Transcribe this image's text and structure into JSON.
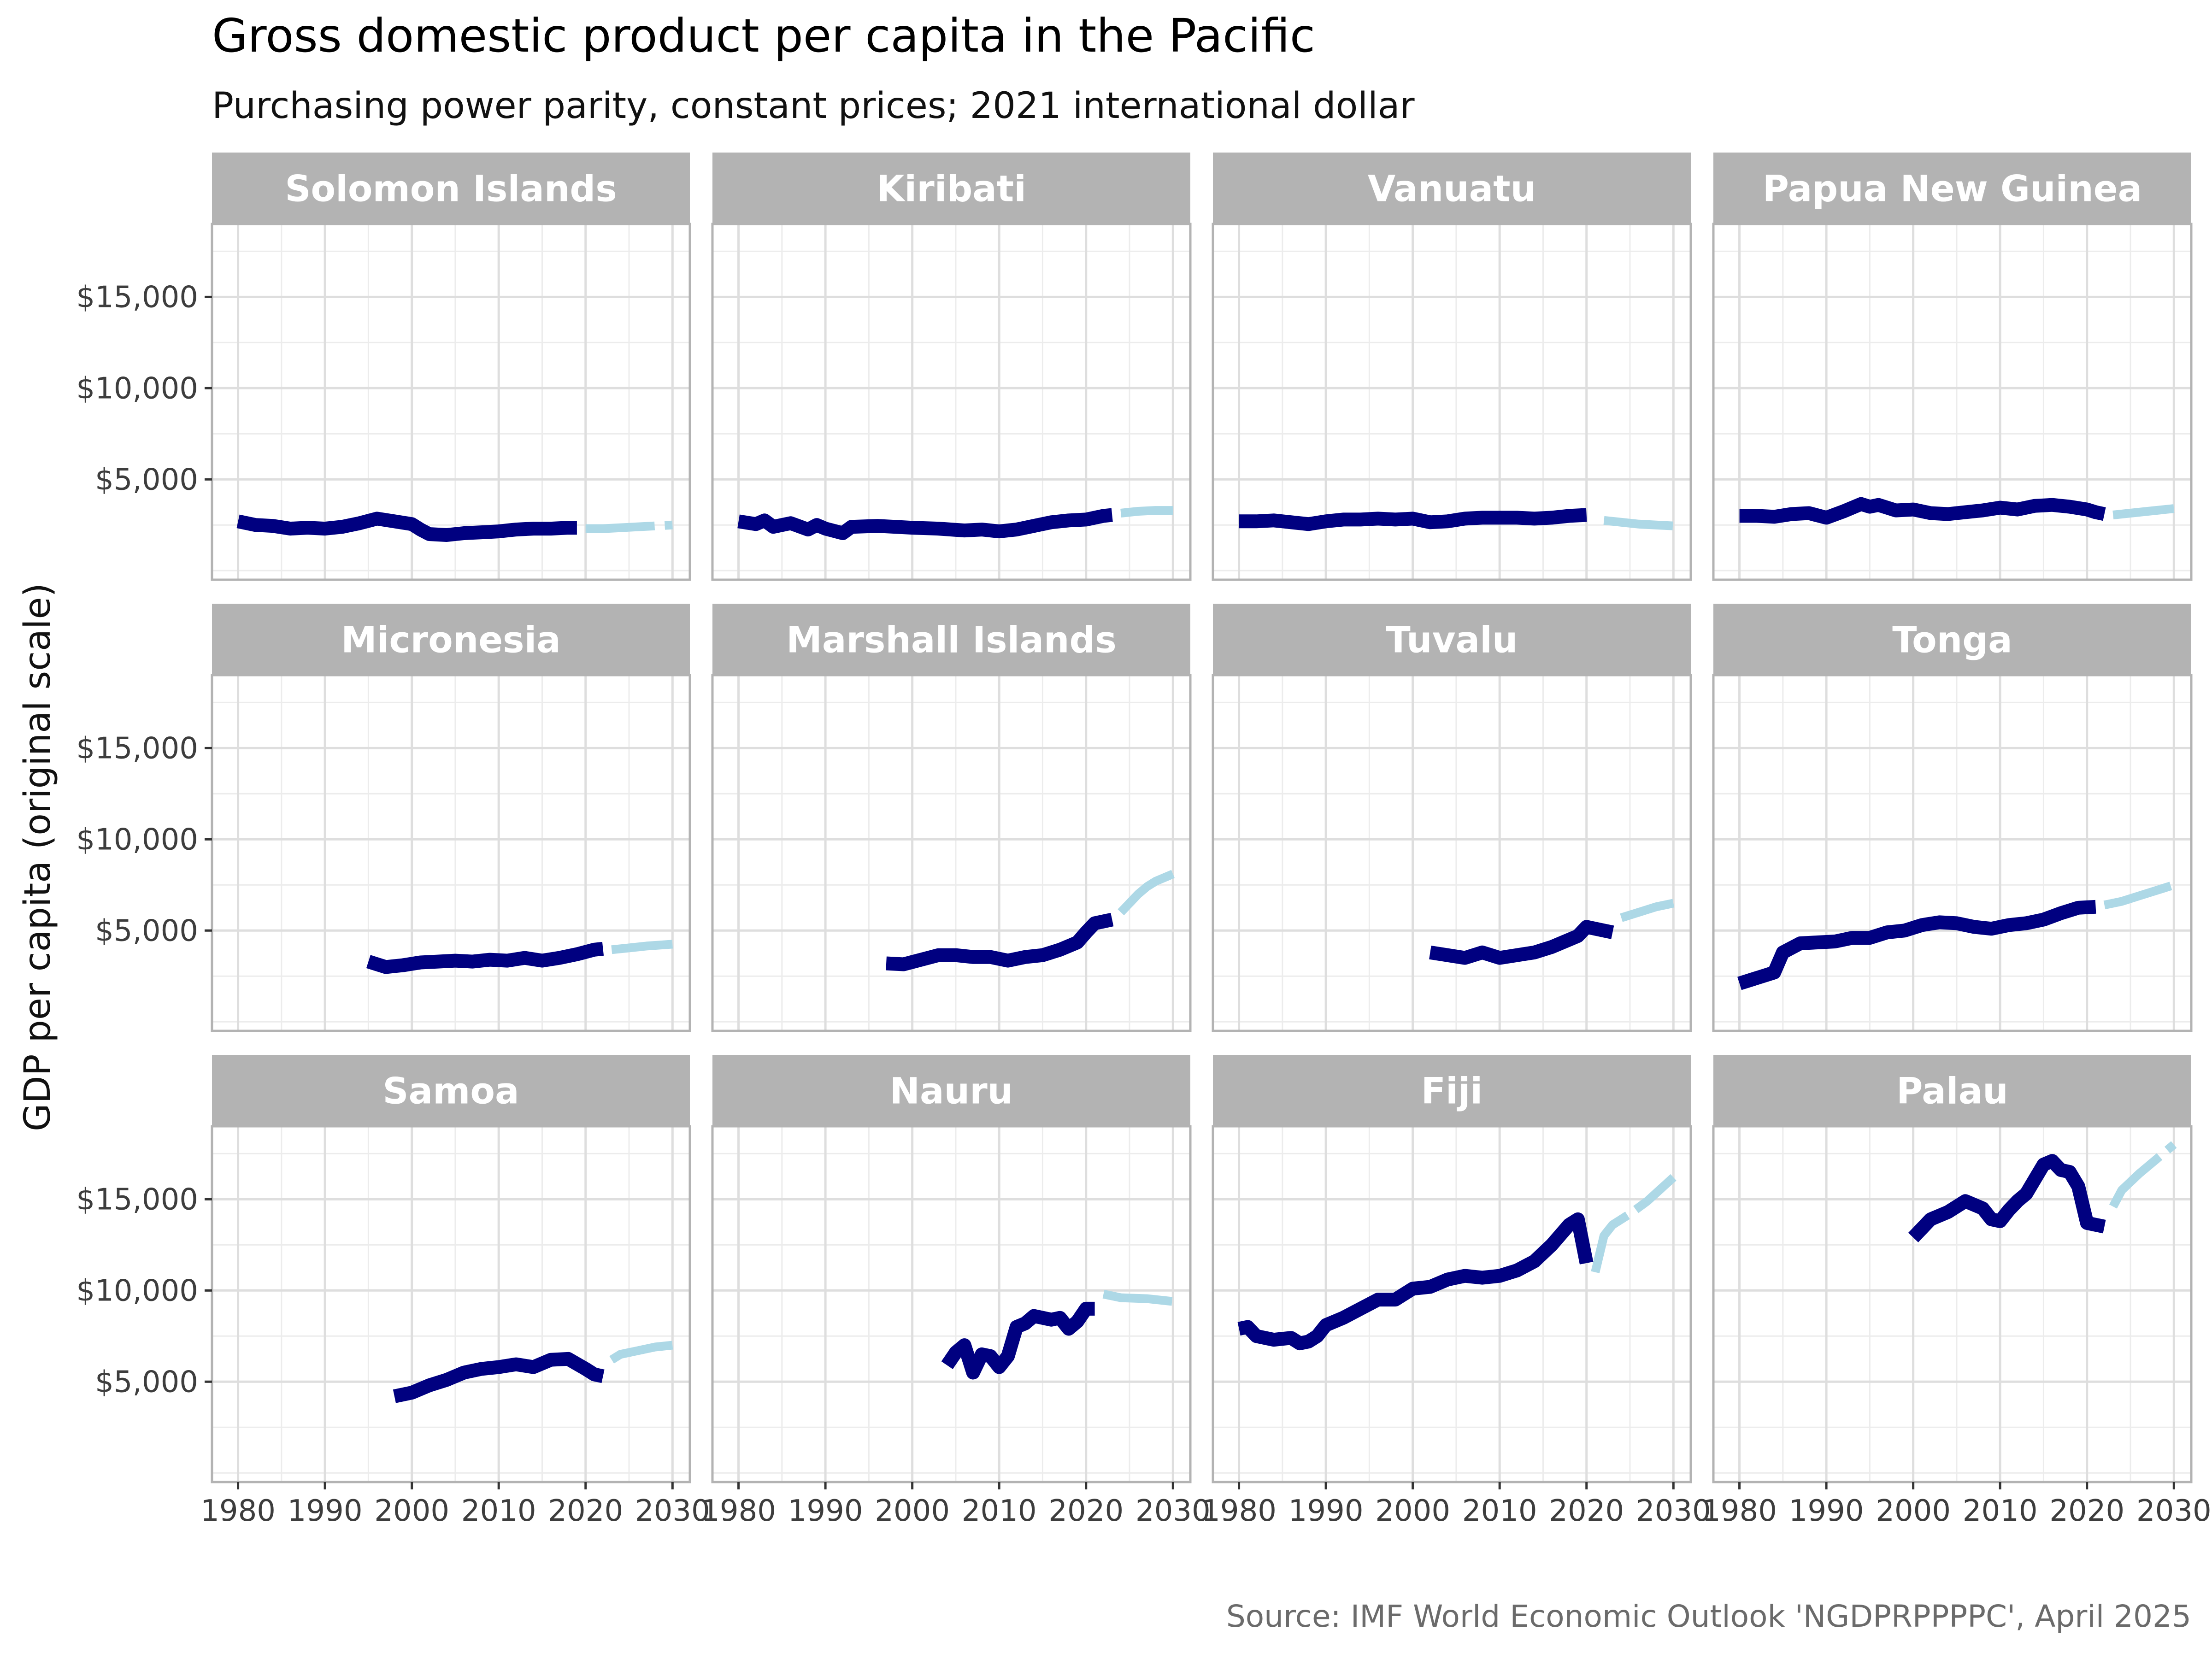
{
  "chart_data": {
    "type": "line",
    "title": "Gross domestic product per capita in the Pacific",
    "subtitle": "Purchasing power parity, constant prices; 2021 international dollar",
    "ylabel": "GDP per capita (original scale)",
    "xlabel": "",
    "caption": "Source: IMF World Economic Outlook 'NGDPRPPPPC', April 2025",
    "xlim": [
      1977,
      2032
    ],
    "ylim": [
      -500,
      19000
    ],
    "x_ticks": [
      1980,
      1990,
      2000,
      2010,
      2020,
      2030
    ],
    "x_tick_labels": [
      "1980",
      "1990",
      "2000",
      "2010",
      "2020",
      "2030"
    ],
    "y_ticks": [
      5000,
      10000,
      15000
    ],
    "y_tick_labels": [
      "$5,000",
      "$10,000",
      "$15,000"
    ],
    "grid": true,
    "colors": {
      "historical": "#000080",
      "forecast": "#add8e6",
      "strip": "#b3b3b3",
      "panel_border": "#b3b3b3",
      "grid_major": "#dedede",
      "grid_minor": "#ececec"
    },
    "panels": [
      {
        "name": "Solomon Islands",
        "historical": [
          [
            1980,
            2700
          ],
          [
            1982,
            2500
          ],
          [
            1984,
            2450
          ],
          [
            1986,
            2300
          ],
          [
            1988,
            2350
          ],
          [
            1990,
            2300
          ],
          [
            1992,
            2400
          ],
          [
            1994,
            2600
          ],
          [
            1996,
            2850
          ],
          [
            1998,
            2700
          ],
          [
            2000,
            2550
          ],
          [
            2001,
            2250
          ],
          [
            2002,
            2000
          ],
          [
            2004,
            1950
          ],
          [
            2006,
            2050
          ],
          [
            2008,
            2100
          ],
          [
            2010,
            2150
          ],
          [
            2012,
            2250
          ],
          [
            2014,
            2300
          ],
          [
            2016,
            2300
          ],
          [
            2018,
            2350
          ],
          [
            2019,
            2350
          ]
        ],
        "forecast": [
          [
            2020,
            2300
          ],
          [
            2022,
            2300
          ],
          [
            2024,
            2350
          ],
          [
            2026,
            2400
          ],
          [
            2028,
            2450
          ],
          [
            2030,
            2500
          ]
        ]
      },
      {
        "name": "Kiribati",
        "historical": [
          [
            1980,
            2700
          ],
          [
            1982,
            2550
          ],
          [
            1983,
            2750
          ],
          [
            1984,
            2400
          ],
          [
            1986,
            2600
          ],
          [
            1988,
            2250
          ],
          [
            1989,
            2500
          ],
          [
            1990,
            2300
          ],
          [
            1992,
            2050
          ],
          [
            1993,
            2400
          ],
          [
            1996,
            2450
          ],
          [
            1998,
            2400
          ],
          [
            2000,
            2350
          ],
          [
            2003,
            2300
          ],
          [
            2006,
            2200
          ],
          [
            2008,
            2250
          ],
          [
            2010,
            2150
          ],
          [
            2012,
            2250
          ],
          [
            2014,
            2450
          ],
          [
            2016,
            2650
          ],
          [
            2018,
            2750
          ],
          [
            2020,
            2800
          ],
          [
            2022,
            3000
          ],
          [
            2023,
            3050
          ]
        ],
        "forecast": [
          [
            2024,
            3150
          ],
          [
            2026,
            3250
          ],
          [
            2028,
            3300
          ],
          [
            2030,
            3300
          ]
        ]
      },
      {
        "name": "Vanuatu",
        "historical": [
          [
            1980,
            2700
          ],
          [
            1982,
            2700
          ],
          [
            1984,
            2750
          ],
          [
            1986,
            2650
          ],
          [
            1988,
            2550
          ],
          [
            1990,
            2700
          ],
          [
            1992,
            2800
          ],
          [
            1994,
            2800
          ],
          [
            1996,
            2850
          ],
          [
            1998,
            2800
          ],
          [
            2000,
            2850
          ],
          [
            2002,
            2650
          ],
          [
            2004,
            2700
          ],
          [
            2006,
            2850
          ],
          [
            2008,
            2900
          ],
          [
            2010,
            2900
          ],
          [
            2012,
            2900
          ],
          [
            2014,
            2850
          ],
          [
            2016,
            2900
          ],
          [
            2018,
            3000
          ],
          [
            2020,
            3050
          ]
        ],
        "forecast": [
          [
            2022,
            2750
          ],
          [
            2024,
            2650
          ],
          [
            2026,
            2550
          ],
          [
            2028,
            2500
          ],
          [
            2030,
            2450
          ]
        ]
      },
      {
        "name": "Papua New Guinea",
        "historical": [
          [
            1980,
            3000
          ],
          [
            1982,
            3000
          ],
          [
            1984,
            2950
          ],
          [
            1986,
            3100
          ],
          [
            1988,
            3150
          ],
          [
            1990,
            2900
          ],
          [
            1992,
            3250
          ],
          [
            1994,
            3650
          ],
          [
            1995,
            3500
          ],
          [
            1996,
            3600
          ],
          [
            1998,
            3300
          ],
          [
            2000,
            3350
          ],
          [
            2002,
            3150
          ],
          [
            2004,
            3100
          ],
          [
            2006,
            3200
          ],
          [
            2008,
            3300
          ],
          [
            2010,
            3450
          ],
          [
            2012,
            3350
          ],
          [
            2014,
            3550
          ],
          [
            2016,
            3600
          ],
          [
            2018,
            3500
          ],
          [
            2020,
            3350
          ],
          [
            2021,
            3200
          ],
          [
            2022,
            3100
          ]
        ],
        "forecast": [
          [
            2023,
            3050
          ],
          [
            2025,
            3150
          ],
          [
            2027,
            3250
          ],
          [
            2030,
            3400
          ]
        ]
      },
      {
        "name": "Micronesia",
        "historical": [
          [
            1995,
            3300
          ],
          [
            1997,
            3000
          ],
          [
            1999,
            3100
          ],
          [
            2001,
            3250
          ],
          [
            2003,
            3300
          ],
          [
            2005,
            3350
          ],
          [
            2007,
            3300
          ],
          [
            2009,
            3400
          ],
          [
            2011,
            3350
          ],
          [
            2013,
            3500
          ],
          [
            2015,
            3350
          ],
          [
            2017,
            3500
          ],
          [
            2019,
            3700
          ],
          [
            2021,
            3950
          ],
          [
            2022,
            4000
          ]
        ],
        "forecast": [
          [
            2023,
            3950
          ],
          [
            2025,
            4050
          ],
          [
            2027,
            4150
          ],
          [
            2030,
            4250
          ]
        ]
      },
      {
        "name": "Marshall Islands",
        "historical": [
          [
            1997,
            3200
          ],
          [
            1999,
            3150
          ],
          [
            2001,
            3400
          ],
          [
            2003,
            3650
          ],
          [
            2005,
            3650
          ],
          [
            2007,
            3550
          ],
          [
            2009,
            3550
          ],
          [
            2011,
            3350
          ],
          [
            2013,
            3550
          ],
          [
            2015,
            3650
          ],
          [
            2017,
            3950
          ],
          [
            2019,
            4350
          ],
          [
            2020,
            4900
          ],
          [
            2021,
            5400
          ],
          [
            2022,
            5500
          ],
          [
            2023,
            5600
          ]
        ],
        "forecast": [
          [
            2024,
            6000
          ],
          [
            2025,
            6500
          ],
          [
            2026,
            7000
          ],
          [
            2027,
            7400
          ],
          [
            2028,
            7700
          ],
          [
            2030,
            8100
          ]
        ]
      },
      {
        "name": "Tuvalu",
        "historical": [
          [
            2002,
            3800
          ],
          [
            2004,
            3650
          ],
          [
            2006,
            3500
          ],
          [
            2008,
            3800
          ],
          [
            2010,
            3500
          ],
          [
            2012,
            3650
          ],
          [
            2014,
            3800
          ],
          [
            2016,
            4100
          ],
          [
            2018,
            4500
          ],
          [
            2019,
            4700
          ],
          [
            2020,
            5200
          ],
          [
            2021,
            5100
          ],
          [
            2022,
            5000
          ],
          [
            2023,
            4900
          ]
        ],
        "forecast": [
          [
            2024,
            5700
          ],
          [
            2026,
            6000
          ],
          [
            2028,
            6300
          ],
          [
            2030,
            6500
          ]
        ]
      },
      {
        "name": "Tonga",
        "historical": [
          [
            1980,
            2100
          ],
          [
            1982,
            2400
          ],
          [
            1984,
            2700
          ],
          [
            1985,
            3800
          ],
          [
            1987,
            4300
          ],
          [
            1989,
            4350
          ],
          [
            1991,
            4400
          ],
          [
            1993,
            4600
          ],
          [
            1995,
            4600
          ],
          [
            1997,
            4900
          ],
          [
            1999,
            5000
          ],
          [
            2001,
            5300
          ],
          [
            2003,
            5450
          ],
          [
            2005,
            5400
          ],
          [
            2007,
            5200
          ],
          [
            2009,
            5100
          ],
          [
            2011,
            5300
          ],
          [
            2013,
            5400
          ],
          [
            2015,
            5600
          ],
          [
            2017,
            5950
          ],
          [
            2019,
            6250
          ],
          [
            2021,
            6300
          ]
        ],
        "forecast": [
          [
            2022,
            6400
          ],
          [
            2024,
            6600
          ],
          [
            2026,
            6900
          ],
          [
            2028,
            7200
          ],
          [
            2030,
            7500
          ]
        ]
      },
      {
        "name": "Samoa",
        "historical": [
          [
            1998,
            4200
          ],
          [
            2000,
            4400
          ],
          [
            2002,
            4800
          ],
          [
            2004,
            5100
          ],
          [
            2006,
            5500
          ],
          [
            2008,
            5700
          ],
          [
            2010,
            5800
          ],
          [
            2012,
            5950
          ],
          [
            2014,
            5800
          ],
          [
            2016,
            6200
          ],
          [
            2018,
            6250
          ],
          [
            2020,
            5700
          ],
          [
            2021,
            5400
          ],
          [
            2022,
            5300
          ]
        ],
        "forecast": [
          [
            2023,
            6200
          ],
          [
            2024,
            6500
          ],
          [
            2026,
            6700
          ],
          [
            2028,
            6900
          ],
          [
            2030,
            7000
          ]
        ]
      },
      {
        "name": "Nauru",
        "historical": [
          [
            2004,
            5900
          ],
          [
            2005,
            6600
          ],
          [
            2006,
            7000
          ],
          [
            2007,
            5500
          ],
          [
            2008,
            6500
          ],
          [
            2009,
            6400
          ],
          [
            2010,
            5800
          ],
          [
            2011,
            6400
          ],
          [
            2012,
            8000
          ],
          [
            2013,
            8200
          ],
          [
            2014,
            8600
          ],
          [
            2016,
            8400
          ],
          [
            2017,
            8500
          ],
          [
            2018,
            7900
          ],
          [
            2019,
            8300
          ],
          [
            2020,
            9000
          ],
          [
            2021,
            9000
          ]
        ],
        "forecast": [
          [
            2022,
            9800
          ],
          [
            2024,
            9600
          ],
          [
            2027,
            9550
          ],
          [
            2030,
            9400
          ]
        ]
      },
      {
        "name": "Fiji",
        "historical": [
          [
            1980,
            7900
          ],
          [
            1981,
            8000
          ],
          [
            1982,
            7500
          ],
          [
            1984,
            7300
          ],
          [
            1986,
            7400
          ],
          [
            1987,
            7100
          ],
          [
            1988,
            7200
          ],
          [
            1989,
            7500
          ],
          [
            1990,
            8100
          ],
          [
            1992,
            8500
          ],
          [
            1994,
            9000
          ],
          [
            1996,
            9500
          ],
          [
            1998,
            9500
          ],
          [
            2000,
            10100
          ],
          [
            2002,
            10200
          ],
          [
            2004,
            10600
          ],
          [
            2006,
            10800
          ],
          [
            2008,
            10700
          ],
          [
            2010,
            10800
          ],
          [
            2012,
            11100
          ],
          [
            2014,
            11600
          ],
          [
            2016,
            12500
          ],
          [
            2018,
            13600
          ],
          [
            2019,
            13900
          ],
          [
            2020,
            11500
          ]
        ],
        "forecast": [
          [
            2021,
            11000
          ],
          [
            2022,
            13000
          ],
          [
            2023,
            13600
          ],
          [
            2025,
            14200
          ],
          [
            2027,
            14900
          ],
          [
            2030,
            16200
          ]
        ]
      },
      {
        "name": "Palau",
        "historical": [
          [
            2000,
            12900
          ],
          [
            2002,
            13900
          ],
          [
            2004,
            14300
          ],
          [
            2006,
            14900
          ],
          [
            2008,
            14500
          ],
          [
            2009,
            13900
          ],
          [
            2010,
            13800
          ],
          [
            2011,
            14400
          ],
          [
            2012,
            14900
          ],
          [
            2013,
            15300
          ],
          [
            2014,
            16100
          ],
          [
            2015,
            16900
          ],
          [
            2016,
            17100
          ],
          [
            2017,
            16600
          ],
          [
            2018,
            16500
          ],
          [
            2019,
            15700
          ],
          [
            2020,
            13700
          ],
          [
            2021,
            13600
          ],
          [
            2022,
            13500
          ]
        ],
        "forecast": [
          [
            2023,
            14600
          ],
          [
            2024,
            15500
          ],
          [
            2026,
            16400
          ],
          [
            2028,
            17200
          ],
          [
            2030,
            18000
          ]
        ]
      }
    ]
  }
}
